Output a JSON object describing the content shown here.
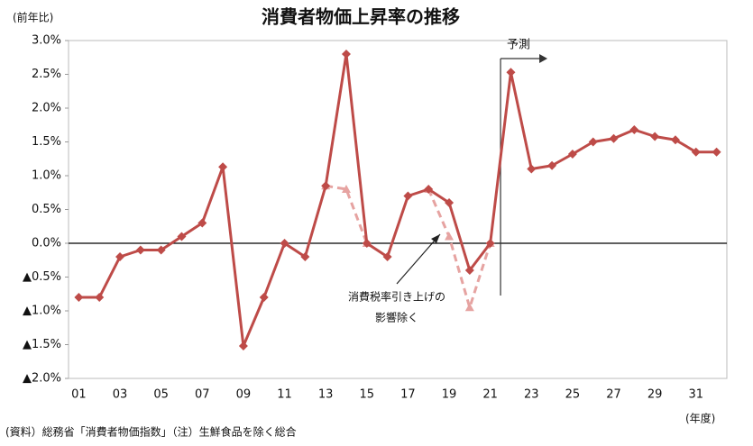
{
  "chart_data": {
    "type": "line",
    "title": "消費者物価上昇率の推移",
    "y_label": "(前年比)",
    "x_label": "(年度)",
    "source": "(資料）総務省「消費者物価指数」（注）生鮮食品を除く総合",
    "forecast_label": "予測",
    "annotation": [
      "消費税率引き上げの",
      "影響除く"
    ],
    "categories": [
      "01",
      null,
      "03",
      null,
      "05",
      null,
      "07",
      null,
      "09",
      null,
      "11",
      null,
      "13",
      null,
      "15",
      null,
      "17",
      null,
      "19",
      null,
      "21",
      null,
      "23",
      null,
      "25",
      null,
      "27",
      null,
      "29",
      null,
      "31",
      null
    ],
    "series": [
      {
        "color": "#be4b48",
        "style": "solid",
        "marker": "diamond",
        "values": [
          -0.8,
          -0.8,
          -0.2,
          -0.1,
          -0.1,
          0.1,
          0.3,
          1.13,
          -1.52,
          -0.8,
          0.0,
          -0.2,
          0.85,
          2.8,
          0.0,
          -0.2,
          0.7,
          0.8,
          0.6,
          -0.4,
          0.0,
          2.53,
          1.1,
          1.15,
          1.32,
          1.5,
          1.55,
          1.68,
          1.58,
          1.53,
          1.35,
          1.35
        ]
      },
      {
        "color": "#e6a3a1",
        "style": "dashed",
        "marker": "triangle",
        "values": [
          null,
          null,
          null,
          null,
          null,
          null,
          null,
          null,
          null,
          null,
          null,
          null,
          0.85,
          0.8,
          0.0,
          null,
          null,
          0.8,
          0.1,
          -0.95,
          0.0,
          null,
          null,
          null,
          null,
          null,
          null,
          null,
          null,
          null,
          null,
          null
        ]
      }
    ],
    "ylim": [
      -2,
      3
    ],
    "yticks": [
      {
        "value": -2,
        "label": "▲2.0%"
      },
      {
        "value": -1.5,
        "label": "▲1.5%"
      },
      {
        "value": -1,
        "label": "▲1.0%"
      },
      {
        "value": -0.5,
        "label": "▲0.5%"
      },
      {
        "value": 0,
        "label": "0.0%"
      },
      {
        "value": 0.5,
        "label": "0.5%"
      },
      {
        "value": 1,
        "label": "1.0%"
      },
      {
        "value": 1.5,
        "label": "1.5%"
      },
      {
        "value": 2,
        "label": "2.0%"
      },
      {
        "value": 2.5,
        "label": "2.5%"
      },
      {
        "value": 3,
        "label": "3.0%"
      }
    ],
    "forecast_after": 20,
    "grid": false
  }
}
